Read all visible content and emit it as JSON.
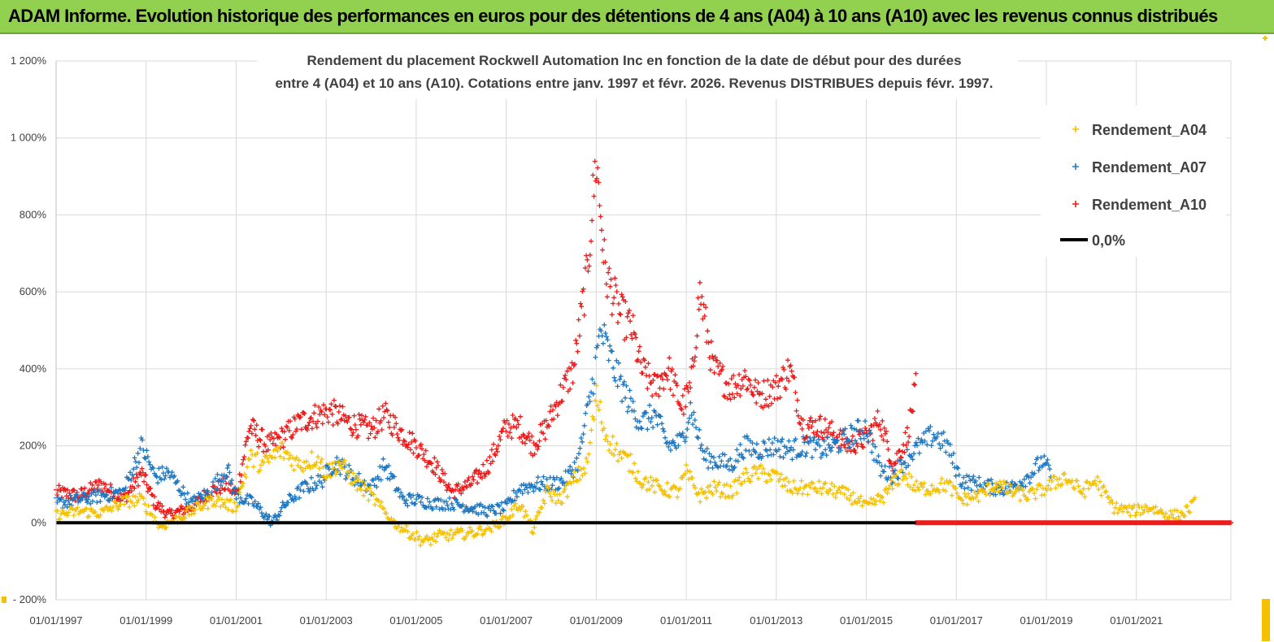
{
  "header": {
    "title": "ADAM Informe. Evolution historique des performances en euros pour des détentions de 4 ans (A04) à 10 ans (A10) avec les revenus connus distribués"
  },
  "chart_data": {
    "type": "scatter",
    "subtitle_lines": [
      "Rendement du placement Rockwell Automation Inc en fonction de la date de début pour des durées",
      "entre 4 (A04) et 10 ans (A10). Cotations entre janv. 1997 et févr. 2026. Revenus DISTRIBUES depuis févr. 1997."
    ],
    "y_ticks": [
      "1 200%",
      "1 000%",
      "800%",
      "600%",
      "400%",
      "200%",
      "0%",
      "- 200%"
    ],
    "y_tick_values": [
      1200,
      1000,
      800,
      600,
      400,
      200,
      0,
      -200
    ],
    "x_ticks": [
      "01/01/1997",
      "01/01/1999",
      "01/01/2001",
      "01/01/2003",
      "01/01/2005",
      "01/01/2007",
      "01/01/2009",
      "01/01/2011",
      "01/01/2013",
      "01/01/2015",
      "01/01/2017",
      "01/01/2019",
      "01/01/2021"
    ],
    "x_tick_years": [
      1997,
      1999,
      2001,
      2003,
      2005,
      2007,
      2009,
      2011,
      2013,
      2015,
      2017,
      2019,
      2021
    ],
    "xlim": [
      1997,
      2023.1
    ],
    "ylim": [
      -200,
      1200
    ],
    "grid": true,
    "legend_position": "right",
    "legend": [
      "Rendement_A04",
      "Rendement_A07",
      "Rendement_A10",
      "0,0%"
    ],
    "series": [
      {
        "name": "Rendement_A04",
        "color": "#f5c000",
        "x": [
          1997.0,
          1997.5,
          1998.0,
          1998.5,
          1998.9,
          1999.3,
          1999.6,
          2000.0,
          2000.5,
          2001.0,
          2001.3,
          2001.6,
          2002.0,
          2002.4,
          2002.8,
          2003.0,
          2003.3,
          2003.7,
          2004.0,
          2004.5,
          2004.9,
          2005.2,
          2005.5,
          2005.9,
          2006.3,
          2006.7,
          2007.0,
          2007.3,
          2007.6,
          2007.9,
          2008.2,
          2008.5,
          2008.8,
          2009.0,
          2009.2,
          2009.5,
          2009.8,
          2010.0,
          2010.4,
          2010.8,
          2011.0,
          2011.3,
          2011.6,
          2012.0,
          2012.3,
          2012.6,
          2013.0,
          2013.3,
          2013.7,
          2014.0,
          2014.4,
          2014.8,
          2015.0,
          2015.4,
          2015.8,
          2016.1,
          2016.4,
          2016.8,
          2017.1,
          2017.5,
          2017.9,
          2018.2,
          2018.6,
          2019.0,
          2019.4,
          2019.8,
          2020.1,
          2020.5,
          2020.9,
          2021.3,
          2021.7,
          2022.0,
          2022.3
        ],
        "values": [
          20,
          30,
          25,
          55,
          60,
          -10,
          5,
          30,
          60,
          40,
          170,
          150,
          190,
          150,
          170,
          130,
          155,
          100,
          70,
          0,
          -30,
          -50,
          -35,
          -30,
          -25,
          -10,
          10,
          50,
          -20,
          80,
          60,
          110,
          150,
          330,
          230,
          180,
          150,
          110,
          90,
          80,
          130,
          70,
          90,
          80,
          120,
          130,
          120,
          90,
          90,
          90,
          80,
          60,
          40,
          70,
          130,
          90,
          90,
          100,
          60,
          70,
          100,
          80,
          70,
          90,
          120,
          80,
          110,
          40,
          30,
          40,
          20,
          20,
          50
        ]
      },
      {
        "name": "Rendement_A07",
        "color": "#1f78c1",
        "x": [
          1997.0,
          1997.5,
          1998.0,
          1998.5,
          1998.9,
          1999.2,
          1999.5,
          2000.0,
          2000.4,
          2000.8,
          2001.0,
          2001.4,
          2001.8,
          2002.1,
          2002.5,
          2002.9,
          2003.2,
          2003.6,
          2004.0,
          2004.3,
          2004.7,
          2005.0,
          2005.4,
          2005.8,
          2006.2,
          2006.6,
          2007.0,
          2007.3,
          2007.7,
          2008.0,
          2008.3,
          2008.6,
          2008.9,
          2009.1,
          2009.4,
          2009.7,
          2010.0,
          2010.3,
          2010.6,
          2010.9,
          2011.1,
          2011.4,
          2011.7,
          2012.0,
          2012.3,
          2012.6,
          2013.0,
          2013.3,
          2013.7,
          2014.0,
          2014.3,
          2014.7,
          2015.0,
          2015.3,
          2015.6,
          2015.9,
          2016.2,
          2016.5,
          2016.8,
          2017.1,
          2017.5,
          2017.9,
          2018.2,
          2018.6,
          2018.9,
          2019.1
        ],
        "values": [
          50,
          60,
          70,
          80,
          200,
          120,
          130,
          50,
          80,
          140,
          70,
          50,
          0,
          50,
          90,
          110,
          160,
          120,
          90,
          150,
          60,
          60,
          50,
          50,
          40,
          30,
          40,
          90,
          100,
          100,
          110,
          160,
          350,
          500,
          400,
          320,
          260,
          280,
          200,
          210,
          300,
          170,
          160,
          150,
          200,
          190,
          200,
          190,
          200,
          190,
          200,
          230,
          250,
          140,
          120,
          170,
          200,
          230,
          200,
          110,
          100,
          90,
          90,
          120,
          160,
          130
        ]
      },
      {
        "name": "Rendement_A10",
        "color": "#ee1b1b",
        "x": [
          1997.0,
          1997.5,
          1998.0,
          1998.5,
          1998.9,
          1999.2,
          1999.5,
          2000.0,
          2000.4,
          2000.8,
          2001.0,
          2001.3,
          2001.7,
          2002.0,
          2002.4,
          2002.8,
          2003.1,
          2003.5,
          2004.0,
          2004.3,
          2004.7,
          2005.0,
          2005.4,
          2005.8,
          2006.2,
          2006.6,
          2007.0,
          2007.3,
          2007.6,
          2007.9,
          2008.2,
          2008.5,
          2008.8,
          2009.0,
          2009.2,
          2009.5,
          2009.8,
          2010.0,
          2010.3,
          2010.6,
          2010.9,
          2011.1,
          2011.3,
          2011.6,
          2012.0,
          2012.3,
          2012.6,
          2013.0,
          2013.3,
          2013.6,
          2014.0,
          2014.3,
          2014.6,
          2015.0,
          2015.3,
          2015.6,
          2015.9,
          2016.1
        ],
        "values": [
          80,
          70,
          100,
          60,
          130,
          50,
          20,
          40,
          80,
          100,
          70,
          250,
          200,
          220,
          260,
          280,
          290,
          260,
          240,
          280,
          230,
          200,
          150,
          80,
          100,
          150,
          250,
          250,
          200,
          250,
          330,
          400,
          650,
          950,
          650,
          550,
          500,
          400,
          350,
          400,
          300,
          350,
          600,
          400,
          350,
          380,
          330,
          350,
          400,
          250,
          250,
          230,
          200,
          220,
          270,
          150,
          220,
          350
        ]
      },
      {
        "name": "0,0%",
        "color": "#000000",
        "x": [
          1997.0,
          2016.1
        ],
        "values": [
          0,
          0
        ]
      }
    ],
    "zero_markers": {
      "x_start": 2016.1,
      "x_end": 2023.1,
      "value": 0
    }
  }
}
